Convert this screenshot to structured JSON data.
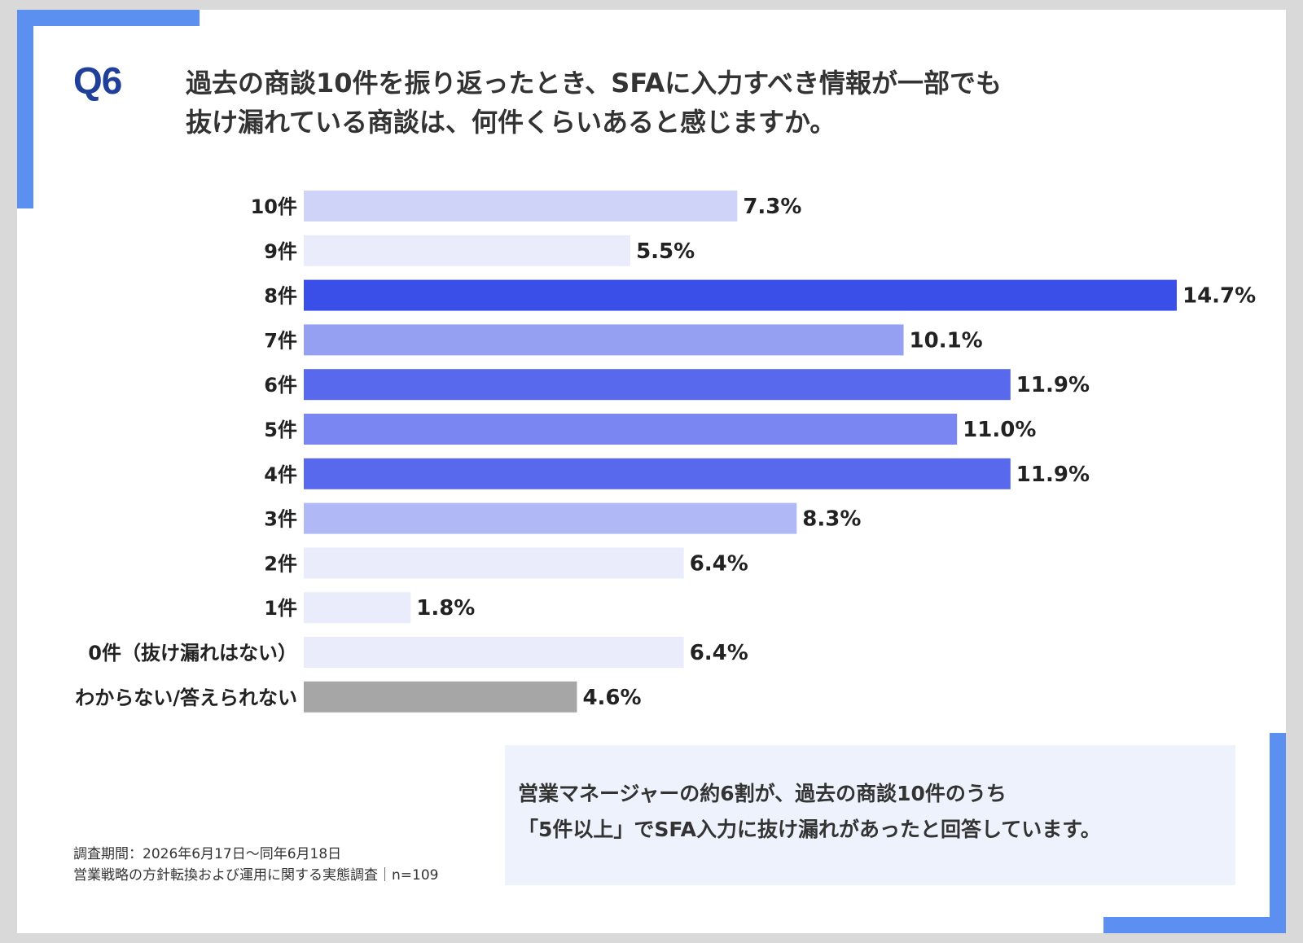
{
  "question_number": "Q6",
  "question_lines": [
    "過去の商談10件を振り返ったとき、SFAに入力すべき情報が一部でも",
    "抜け漏れている商談は、何件くらいあると感じますか。"
  ],
  "chart_data": {
    "type": "bar",
    "orientation": "horizontal",
    "categories": [
      "10件",
      "9件",
      "8件",
      "7件",
      "6件",
      "5件",
      "4件",
      "3件",
      "2件",
      "1件",
      "0件（抜け漏れはない）",
      "わからない/答えられない"
    ],
    "values": [
      7.3,
      5.5,
      14.7,
      10.1,
      11.9,
      11.0,
      11.9,
      8.3,
      6.4,
      1.8,
      6.4,
      4.6
    ],
    "value_labels": [
      "7.3%",
      "5.5%",
      "14.7%",
      "10.1%",
      "11.9%",
      "11.0%",
      "11.9%",
      "8.3%",
      "6.4%",
      "1.8%",
      "6.4%",
      "4.6%"
    ],
    "colors": [
      "#cfd3f7",
      "#eaecfb",
      "#3a4fe8",
      "#95a0f3",
      "#5869ee",
      "#7a86f1",
      "#5869ee",
      "#b0b8f5",
      "#eaecfb",
      "#eaecfb",
      "#eaecfb",
      "#a6a6a6"
    ],
    "xlim": [
      0,
      14.7
    ],
    "grid": false,
    "legend": "none"
  },
  "notes": [
    "調査期間：2026年6月17日〜同年6月18日",
    "営業戦略の方針転換および運用に関する実態調査｜n=109"
  ],
  "summary_lines": [
    "営業マネージャーの約6割が、過去の商談10件のうち",
    "「5件以上」でSFA入力に抜け漏れがあったと回答しています。"
  ]
}
